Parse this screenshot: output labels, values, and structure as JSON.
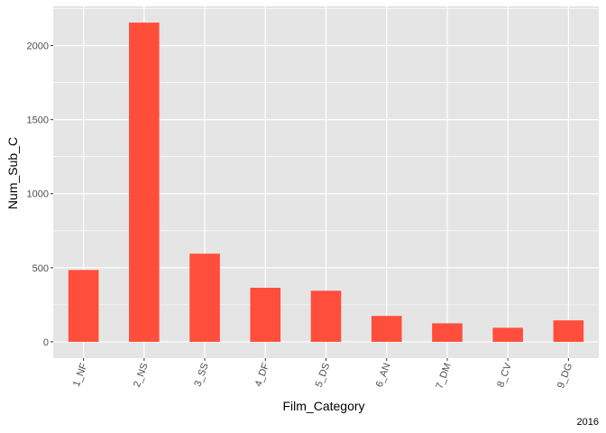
{
  "chart_data": {
    "type": "bar",
    "categories": [
      "1_NF",
      "2_NS",
      "3_SS",
      "4_DF",
      "5_DS",
      "6_AN",
      "7_DM",
      "8_CV",
      "9_DG"
    ],
    "values": [
      485,
      2155,
      595,
      365,
      345,
      175,
      125,
      95,
      145
    ],
    "xlabel": "Film_Category",
    "ylabel": "Num_Sub_C",
    "yticks": [
      0,
      500,
      1000,
      1500,
      2000
    ],
    "ylim": [
      -110,
      2265
    ],
    "grid": true,
    "caption": "2016"
  },
  "colors": {
    "panel": "#e5e5e5",
    "grid_major": "#ffffff",
    "bar": "#ff4e3b"
  }
}
